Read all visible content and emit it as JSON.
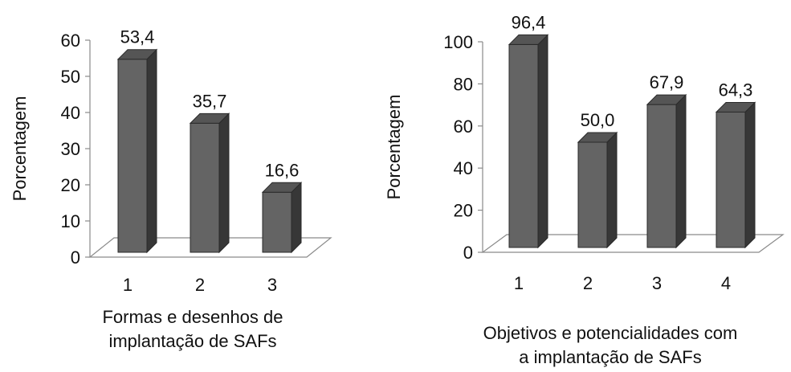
{
  "chart_data": [
    {
      "type": "bar",
      "categories": [
        "1",
        "2",
        "3"
      ],
      "values": [
        53.4,
        35.7,
        16.6
      ],
      "value_labels": [
        "53,4",
        "35,7",
        "16,6"
      ],
      "ylabel": "Porcentagem",
      "xlabel": "Formas e desenhos de\nimplantação de SAFs",
      "ylim": [
        0,
        60
      ],
      "yticks": [
        0,
        10,
        20,
        30,
        40,
        50,
        60
      ],
      "grid": false,
      "style": "3d-column",
      "bar_color": "#646464"
    },
    {
      "type": "bar",
      "categories": [
        "1",
        "2",
        "3",
        "4"
      ],
      "values": [
        96.4,
        50.0,
        67.9,
        64.3
      ],
      "value_labels": [
        "96,4",
        "50,0",
        "67,9",
        "64,3"
      ],
      "ylabel": "Porcentagem",
      "xlabel": "Objetivos e potencialidades com\na implantação de SAFs",
      "ylim": [
        0,
        100
      ],
      "yticks": [
        0,
        20,
        40,
        60,
        80,
        100
      ],
      "grid": false,
      "style": "3d-column",
      "bar_color": "#646464"
    }
  ]
}
